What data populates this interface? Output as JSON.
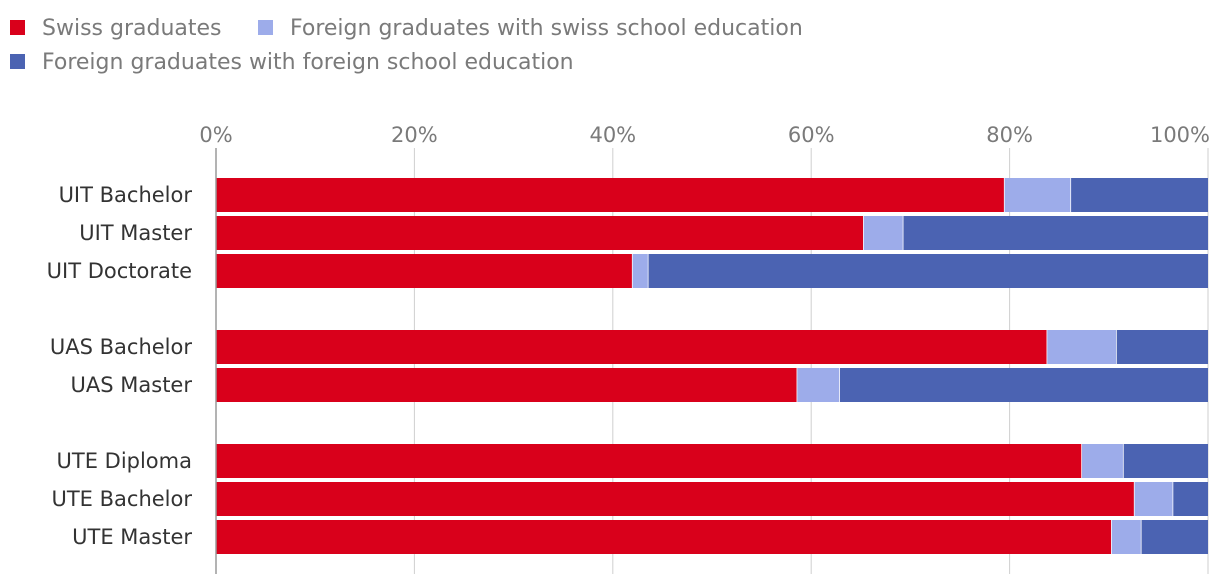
{
  "chart_data": {
    "type": "bar",
    "orientation": "horizontal",
    "stacked": true,
    "categories": [
      "UIT Bachelor",
      "UIT Master",
      "UIT Doctorate",
      "UAS Bachelor",
      "UAS Master",
      "UTE Diploma",
      "UTE Bachelor",
      "UTE Master"
    ],
    "groups": [
      [
        "UIT Bachelor",
        "UIT Master",
        "UIT Doctorate"
      ],
      [
        "UAS Bachelor",
        "UAS Master"
      ],
      [
        "UTE Diploma",
        "UTE Bachelor",
        "UTE Master"
      ]
    ],
    "series": [
      {
        "name": "Swiss graduates",
        "color": "#d9001b",
        "values": [
          79.5,
          65.3,
          42.0,
          83.8,
          58.6,
          87.3,
          92.6,
          90.3
        ]
      },
      {
        "name": "Foreign graduates with swiss school education",
        "color": "#9dacea",
        "values": [
          6.7,
          4.0,
          1.6,
          7.0,
          4.3,
          4.2,
          3.9,
          3.0
        ]
      },
      {
        "name": "Foreign graduates with foreign school education",
        "color": "#4b63b2",
        "values": [
          13.8,
          30.7,
          56.4,
          9.2,
          37.1,
          8.5,
          3.5,
          6.7
        ]
      }
    ],
    "xlim": [
      0,
      100
    ],
    "x_ticks": [
      0,
      20,
      40,
      60,
      80,
      100
    ],
    "tick_labels": [
      "0%",
      "20%",
      "40%",
      "60%",
      "80%",
      "100%"
    ],
    "grid": true,
    "legend_position": "top-left",
    "title": "",
    "xlabel": "",
    "ylabel": ""
  }
}
